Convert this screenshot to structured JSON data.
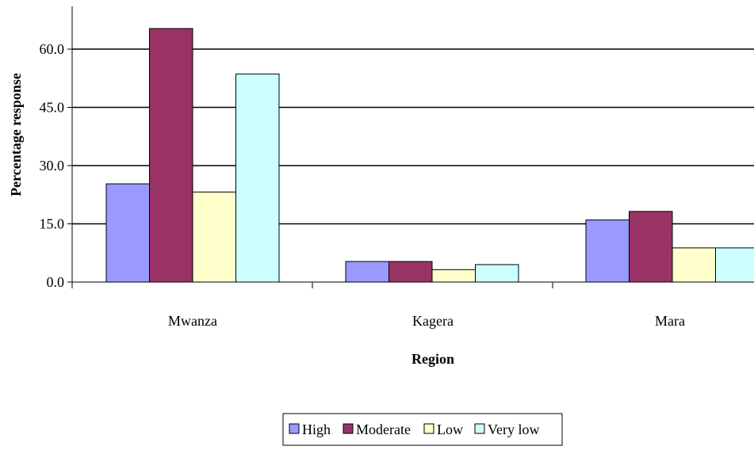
{
  "chart_data": {
    "type": "bar",
    "categories": [
      "Mwanza",
      "Kagera",
      "Mara"
    ],
    "series": [
      {
        "name": "High",
        "values": [
          25.3,
          5.3,
          16.0
        ],
        "color": "#9999ff"
      },
      {
        "name": "Moderate",
        "values": [
          65.3,
          5.3,
          18.2
        ],
        "color": "#993366"
      },
      {
        "name": "Low",
        "values": [
          23.2,
          3.2,
          8.8
        ],
        "color": "#ffffcc"
      },
      {
        "name": "Very low",
        "values": [
          53.6,
          4.5,
          8.8
        ],
        "color": "#ccffff"
      }
    ],
    "xlabel": "Region",
    "ylabel": "Percentage response",
    "ylim": [
      0,
      60
    ],
    "yticks": [
      "0.0",
      "15.0",
      "30.0",
      "45.0",
      "60.0"
    ],
    "grid": true,
    "legend": "bottom"
  }
}
